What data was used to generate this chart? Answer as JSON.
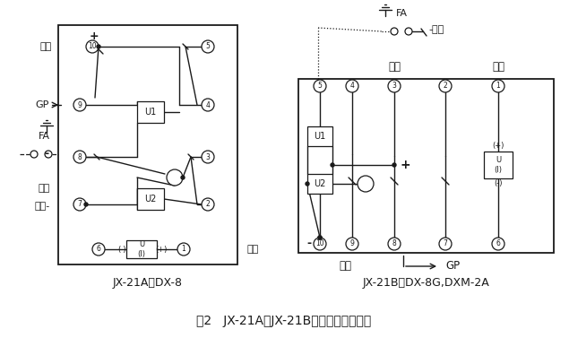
{
  "title": "图2   JX-21A、JX-21B接线图（正视图）",
  "title_fontsize": 10,
  "bg_color": "#ffffff",
  "line_color": "#1a1a1a",
  "left_label": "JX-21A代DX-8",
  "right_label": "JX-21B代DX-8G,DXM-2A"
}
